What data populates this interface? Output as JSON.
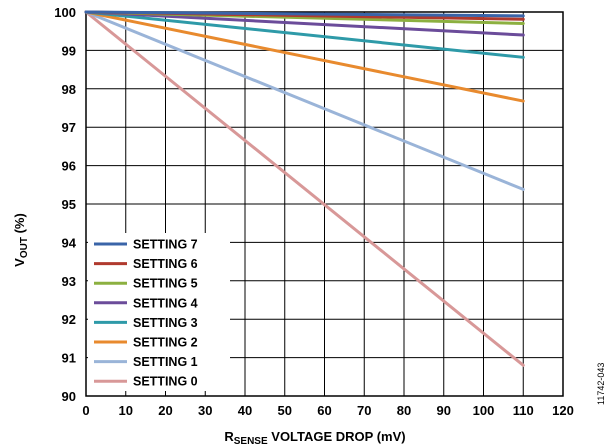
{
  "chart_data": {
    "type": "line",
    "title": "",
    "xlabel": {
      "main": "R",
      "sub": "SENSE",
      "rest": " VOLTAGE DROP (mV)"
    },
    "ylabel": {
      "main": "V",
      "sub": "OUT",
      "rest": " (%)"
    },
    "xlim": [
      0,
      120
    ],
    "ylim": [
      90,
      100
    ],
    "xticks": [
      0,
      10,
      20,
      30,
      40,
      50,
      60,
      70,
      80,
      90,
      100,
      110,
      120
    ],
    "yticks": [
      90,
      91,
      92,
      93,
      94,
      95,
      96,
      97,
      98,
      99,
      100
    ],
    "grid": true,
    "legend_position": "lower-left",
    "series": [
      {
        "name": "SETTING 7",
        "color": "#3a64a8",
        "x": [
          0,
          110
        ],
        "y": [
          100,
          99.9
        ]
      },
      {
        "name": "SETTING 6",
        "color": "#b03a2e",
        "x": [
          0,
          110
        ],
        "y": [
          100,
          99.81
        ]
      },
      {
        "name": "SETTING 5",
        "color": "#8cb040",
        "x": [
          0,
          110
        ],
        "y": [
          100,
          99.7
        ]
      },
      {
        "name": "SETTING 4",
        "color": "#6b4c9a",
        "x": [
          0,
          110
        ],
        "y": [
          100,
          99.4
        ]
      },
      {
        "name": "SETTING 3",
        "color": "#2e9aa8",
        "x": [
          0,
          110
        ],
        "y": [
          100,
          98.82
        ]
      },
      {
        "name": "SETTING 2",
        "color": "#e88a2e",
        "x": [
          0,
          110
        ],
        "y": [
          100,
          97.68
        ]
      },
      {
        "name": "SETTING 1",
        "color": "#9ab4d8",
        "x": [
          0,
          110
        ],
        "y": [
          100,
          95.38
        ]
      },
      {
        "name": "SETTING 0",
        "color": "#d89898",
        "x": [
          0,
          110
        ],
        "y": [
          100,
          90.8
        ]
      }
    ]
  },
  "figure_id": "11742-043"
}
